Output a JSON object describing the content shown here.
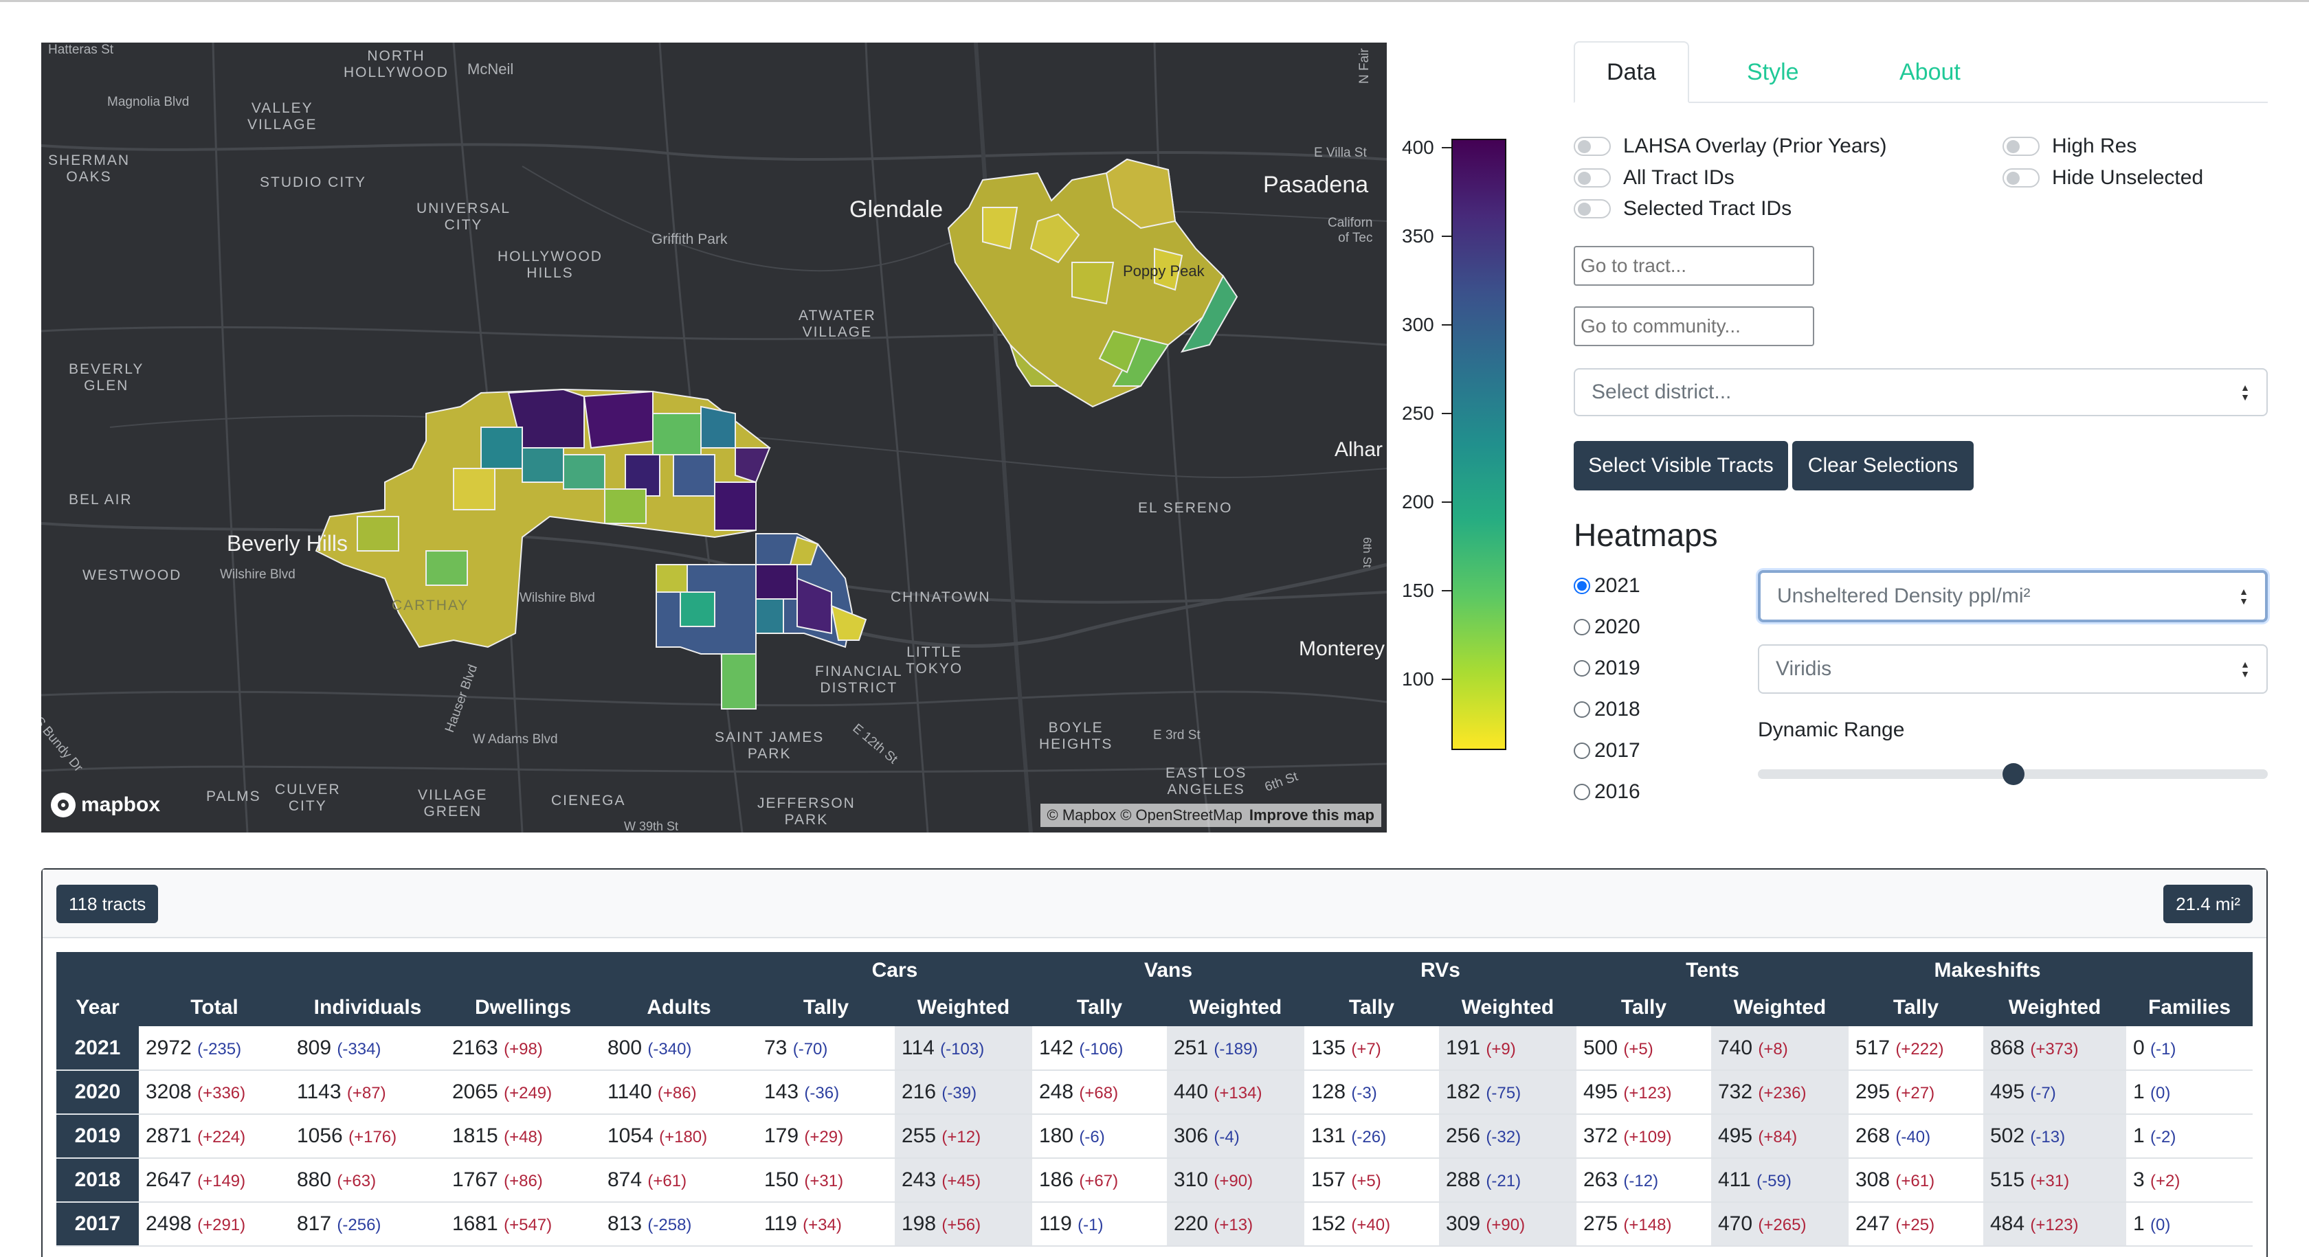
{
  "map": {
    "labels": {
      "hatteras": "Hatteras St",
      "north_hollywood": "NORTH\nHOLLYWOOD",
      "mcneil": "McNeil",
      "magnolia": "Magnolia Blvd",
      "valley_village": "VALLEY\nVILLAGE",
      "sherman_oaks": "SHERMAN\nOAKS",
      "studio_city": "STUDIO CITY",
      "universal_city": "UNIVERSAL\nCITY",
      "hollywood_hills": "HOLLYWOOD\nHILLS",
      "griffith_park": "Griffith Park",
      "glendale": "Glendale",
      "pasadena": "Pasadena",
      "e_villa": "E Villa St",
      "california": "Californ\nof Tec",
      "n_fair": "N Fair",
      "atwater": "ATWATER\nVILLAGE",
      "beverly_glen": "BEVERLY\nGLEN",
      "bel_air": "BEL AIR",
      "beverly_hills": "Beverly Hills",
      "westwood": "WESTWOOD",
      "wilshire_blvd_w": "Wilshire Blvd",
      "wilshire_blvd": "Wilshire Blvd",
      "alhambra": "Alhar",
      "el_sereno": "EL SERENO",
      "chinatown": "CHINATOWN",
      "little_tokyo": "LITTLE\nTOKYO",
      "financial": "FINANCIAL\nDISTRICT",
      "monterey": "Monterey",
      "boyle": "BOYLE\nHEIGHTS",
      "e3rd": "E 3rd St",
      "hauser": "Hauser Blvd",
      "w_adams": "W Adams Blvd",
      "saint_james": "SAINT JAMES\nPARK",
      "e12th": "E 12th St",
      "east_la": "EAST LOS\nANGELES",
      "sixth": "6th St",
      "bundy": "S Bundy Dr",
      "palms": "PALMS",
      "culver": "CULVER\nCITY",
      "village_green": "VILLAGE\nGREEN",
      "cienega": "CIENEGA",
      "jefferson": "JEFFERSON\nPARK",
      "w39": "W 39th St",
      "nine_th": "6th St",
      "carthay": "CARTHAY",
      "poppy": "Poppy Peak"
    },
    "logo": "mapbox",
    "attribution": "© Mapbox © OpenStreetMap",
    "improve": "Improve this map"
  },
  "legend": {
    "ticks": [
      "400",
      "350",
      "300",
      "250",
      "200",
      "150",
      "100"
    ],
    "colors": [
      "#440154",
      "#3b518b",
      "#21908d",
      "#5cc863",
      "#fde725"
    ]
  },
  "tabs": [
    "Data",
    "Style",
    "About"
  ],
  "toggles": {
    "lahsa": "LAHSA Overlay (Prior Years)",
    "all_ids": "All Tract IDs",
    "selected_ids": "Selected Tract IDs",
    "high_res": "High Res",
    "hide_unselected": "Hide Unselected"
  },
  "inputs": {
    "tract_placeholder": "Go to tract...",
    "community_placeholder": "Go to community..."
  },
  "district_select": "Select district...",
  "buttons": {
    "select_visible": "Select Visible Tracts",
    "clear": "Clear Selections"
  },
  "heatmaps": {
    "title": "Heatmaps",
    "years": [
      "2021",
      "2020",
      "2019",
      "2018",
      "2017",
      "2016"
    ],
    "selected_year": "2021",
    "metric": "Unsheltered Density ppl/mi²",
    "palette": "Viridis",
    "dynamic_range_label": "Dynamic Range",
    "dynamic_range_value": 0.5
  },
  "summary": {
    "tracts": "118 tracts",
    "area": "21.4 mi²"
  },
  "table": {
    "group_headers": [
      "Cars",
      "Vans",
      "RVs",
      "Tents",
      "Makeshifts"
    ],
    "columns": [
      "Year",
      "Total",
      "Individuals",
      "Dwellings",
      "Adults",
      "Tally",
      "Weighted",
      "Tally",
      "Weighted",
      "Tally",
      "Weighted",
      "Tally",
      "Weighted",
      "Tally",
      "Weighted",
      "Families"
    ],
    "rows": [
      {
        "year": "2021",
        "cells": [
          [
            "2972",
            "(-235)"
          ],
          [
            "809",
            "(-334)"
          ],
          [
            "2163",
            "(+98)"
          ],
          [
            "800",
            "(-340)"
          ],
          [
            "73",
            "(-70)"
          ],
          [
            "114",
            "(-103)"
          ],
          [
            "142",
            "(-106)"
          ],
          [
            "251",
            "(-189)"
          ],
          [
            "135",
            "(+7)"
          ],
          [
            "191",
            "(+9)"
          ],
          [
            "500",
            "(+5)"
          ],
          [
            "740",
            "(+8)"
          ],
          [
            "517",
            "(+222)"
          ],
          [
            "868",
            "(+373)"
          ],
          [
            "0",
            "(-1)"
          ]
        ]
      },
      {
        "year": "2020",
        "cells": [
          [
            "3208",
            "(+336)"
          ],
          [
            "1143",
            "(+87)"
          ],
          [
            "2065",
            "(+249)"
          ],
          [
            "1140",
            "(+86)"
          ],
          [
            "143",
            "(-36)"
          ],
          [
            "216",
            "(-39)"
          ],
          [
            "248",
            "(+68)"
          ],
          [
            "440",
            "(+134)"
          ],
          [
            "128",
            "(-3)"
          ],
          [
            "182",
            "(-75)"
          ],
          [
            "495",
            "(+123)"
          ],
          [
            "732",
            "(+236)"
          ],
          [
            "295",
            "(+27)"
          ],
          [
            "495",
            "(-7)"
          ],
          [
            "1",
            "(0)"
          ]
        ]
      },
      {
        "year": "2019",
        "cells": [
          [
            "2871",
            "(+224)"
          ],
          [
            "1056",
            "(+176)"
          ],
          [
            "1815",
            "(+48)"
          ],
          [
            "1054",
            "(+180)"
          ],
          [
            "179",
            "(+29)"
          ],
          [
            "255",
            "(+12)"
          ],
          [
            "180",
            "(-6)"
          ],
          [
            "306",
            "(-4)"
          ],
          [
            "131",
            "(-26)"
          ],
          [
            "256",
            "(-32)"
          ],
          [
            "372",
            "(+109)"
          ],
          [
            "495",
            "(+84)"
          ],
          [
            "268",
            "(-40)"
          ],
          [
            "502",
            "(-13)"
          ],
          [
            "1",
            "(-2)"
          ]
        ]
      },
      {
        "year": "2018",
        "cells": [
          [
            "2647",
            "(+149)"
          ],
          [
            "880",
            "(+63)"
          ],
          [
            "1767",
            "(+86)"
          ],
          [
            "874",
            "(+61)"
          ],
          [
            "150",
            "(+31)"
          ],
          [
            "243",
            "(+45)"
          ],
          [
            "186",
            "(+67)"
          ],
          [
            "310",
            "(+90)"
          ],
          [
            "157",
            "(+5)"
          ],
          [
            "288",
            "(-21)"
          ],
          [
            "263",
            "(-12)"
          ],
          [
            "411",
            "(-59)"
          ],
          [
            "308",
            "(+61)"
          ],
          [
            "515",
            "(+31)"
          ],
          [
            "3",
            "(+2)"
          ]
        ]
      },
      {
        "year": "2017",
        "cells": [
          [
            "2498",
            "(+291)"
          ],
          [
            "817",
            "(-256)"
          ],
          [
            "1681",
            "(+547)"
          ],
          [
            "813",
            "(-258)"
          ],
          [
            "119",
            "(+34)"
          ],
          [
            "198",
            "(+56)"
          ],
          [
            "119",
            "(-1)"
          ],
          [
            "220",
            "(+13)"
          ],
          [
            "152",
            "(+40)"
          ],
          [
            "309",
            "(+90)"
          ],
          [
            "275",
            "(+148)"
          ],
          [
            "470",
            "(+265)"
          ],
          [
            "247",
            "(+25)"
          ],
          [
            "484",
            "(+123)"
          ],
          [
            "1",
            "(0)"
          ]
        ]
      }
    ]
  }
}
